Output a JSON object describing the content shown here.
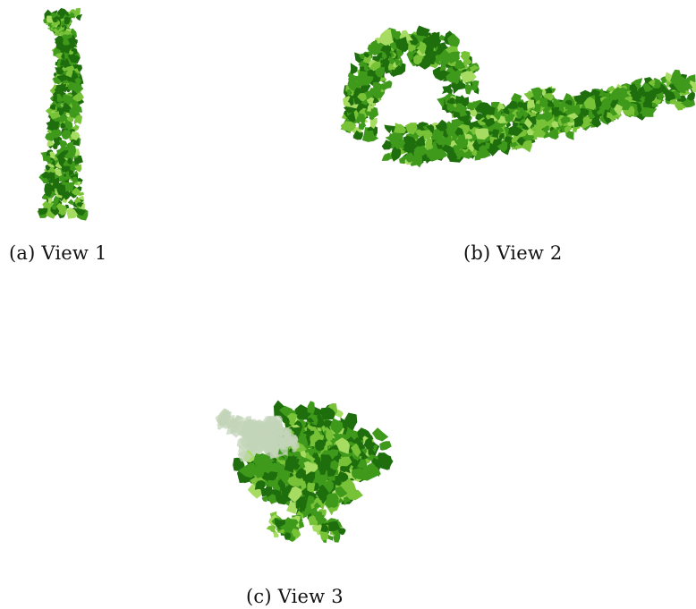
{
  "figure": {
    "captions": {
      "a": "(a) View 1",
      "b": "(b) View 2",
      "c": "(c) View 3"
    },
    "colors": {
      "dark": "#1f6e0d",
      "mid": "#3f9a1c",
      "light": "#78c238",
      "highlight": "#a6dc62",
      "faded": "#c3d4b8"
    }
  }
}
